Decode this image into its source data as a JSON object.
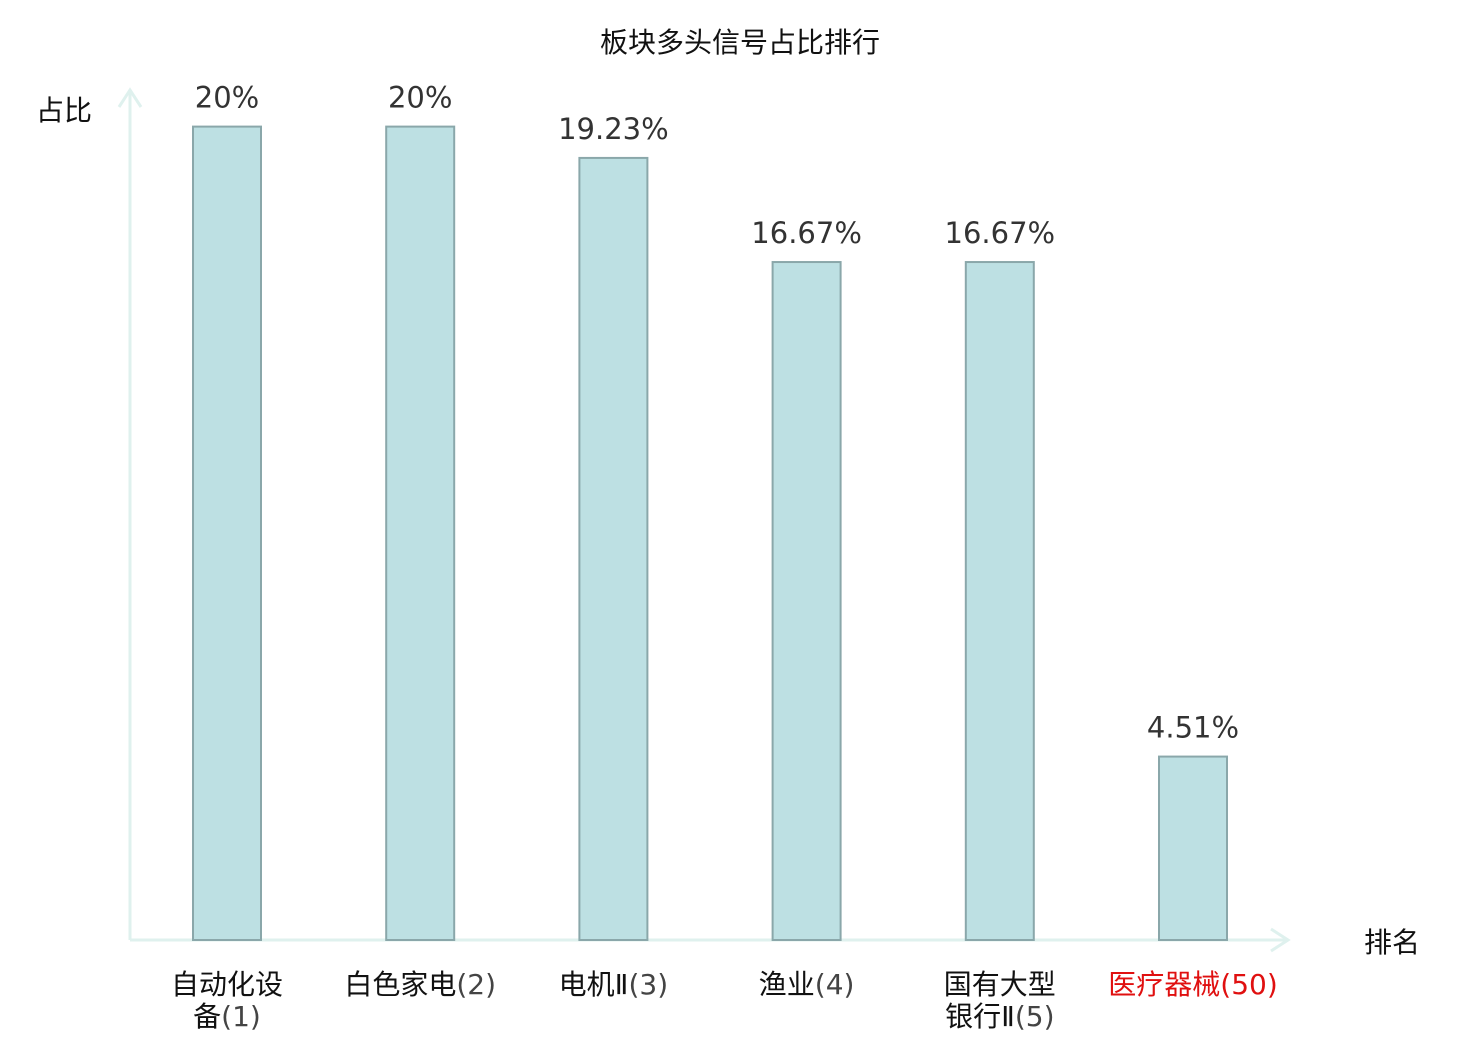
{
  "chart_data": {
    "type": "bar",
    "title": "板块多头信号占比排行",
    "ylabel": "占比",
    "xlabel": "排名",
    "ylim": [
      0,
      20.9
    ],
    "grid": false,
    "bar_color": "#bde0e3",
    "highlight_color": "#e01010",
    "categories": [
      {
        "name_lines": [
          "自动化设",
          "备"
        ],
        "rank": "(1)",
        "highlight": false
      },
      {
        "name_lines": [
          "白色家电"
        ],
        "rank": "(2)",
        "highlight": false
      },
      {
        "name_lines": [
          "电机Ⅱ"
        ],
        "rank": "(3)",
        "highlight": false
      },
      {
        "name_lines": [
          "渔业"
        ],
        "rank": "(4)",
        "highlight": false
      },
      {
        "name_lines": [
          "国有大型",
          "银行Ⅱ"
        ],
        "rank": "(5)",
        "highlight": false
      },
      {
        "name_lines": [
          "医疗器械"
        ],
        "rank": "(50)",
        "highlight": true
      }
    ],
    "values": [
      20,
      20,
      19.23,
      16.67,
      16.67,
      4.51
    ],
    "value_labels": [
      "20%",
      "20%",
      "19.23%",
      "16.67%",
      "16.67%",
      "4.51%"
    ]
  }
}
